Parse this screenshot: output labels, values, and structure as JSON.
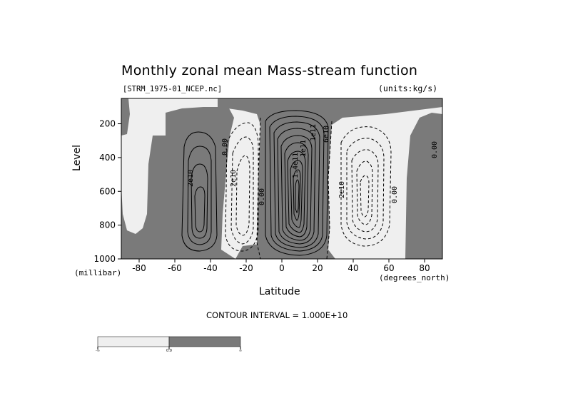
{
  "chart_data": {
    "type": "contour",
    "title": "Monthly zonal mean Mass-stream function",
    "file_label": "[STRM_1975-01_NCEP.nc]",
    "units_label": "(units:kg/s)",
    "ylabel": "Level",
    "yunit_label": "(millibar)",
    "xlabel": "Latitude",
    "xunit_label": "(degrees_north)",
    "footer": "CONTOUR INTERVAL = 1.000E+10",
    "xlim": [
      -90,
      90
    ],
    "ylim": [
      1000,
      50
    ],
    "y_reversed": true,
    "x_ticks": [
      "-80",
      "-60",
      "-40",
      "-20",
      "0",
      "20",
      "40",
      "60",
      "80"
    ],
    "y_ticks": [
      "200",
      "400",
      "600",
      "800",
      "1000"
    ],
    "contour_interval": 10000000000.0,
    "contour_labels": [
      "2e10",
      "0.00",
      "2e10",
      "0.00",
      "1.4e11",
      "1e11",
      "1e11",
      "6e10",
      "2e10",
      "0.00",
      "0.00"
    ],
    "cells": [
      {
        "sign": "positive",
        "lat_range": [
          -65,
          -40
        ]
      },
      {
        "sign": "negative",
        "lat_range": [
          -35,
          -10
        ]
      },
      {
        "sign": "positive",
        "lat_range": [
          -8,
          30
        ]
      },
      {
        "sign": "negative",
        "lat_range": [
          32,
          60
        ]
      }
    ],
    "colorbar": {
      "labels": [
        "-∞",
        "0.0",
        "∞"
      ],
      "colors": [
        "#efefef",
        "#7a7a7a"
      ]
    },
    "colors": {
      "positive_fill": "#7a7a7a",
      "negative_fill": "#efefef"
    }
  }
}
